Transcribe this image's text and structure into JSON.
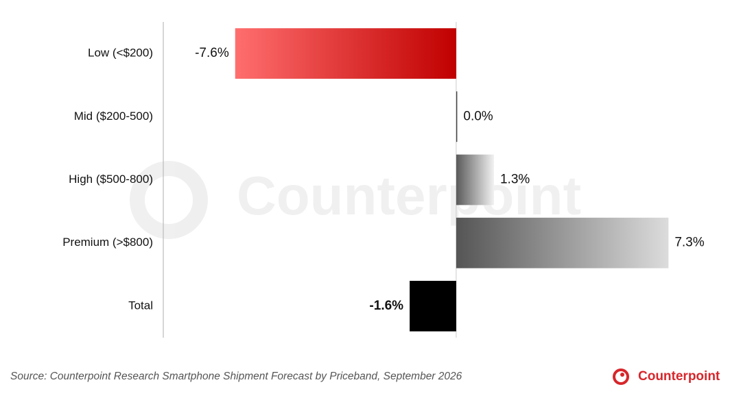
{
  "chart_data": {
    "type": "barh",
    "categories": [
      "Low (<$200)",
      "Mid ($200-500)",
      "High ($500-800)",
      "Premium (>$800)",
      "Total"
    ],
    "values": [
      -7.6,
      0.0,
      1.3,
      7.3,
      -1.6
    ],
    "value_labels": [
      "-7.6%",
      "0.0%",
      "1.3%",
      "7.3%",
      "-1.6%"
    ],
    "gradients": [
      [
        "#ff6e6e",
        "#c00000"
      ],
      [
        "#444444",
        "#444444"
      ],
      [
        "#5a5a5a",
        "#f2f2f2"
      ],
      [
        "#555555",
        "#dcdcdc"
      ],
      [
        "#000000",
        "#000000"
      ]
    ],
    "label_bold": [
      false,
      false,
      false,
      false,
      true
    ],
    "xlim": [
      -10,
      8
    ],
    "watermark": "Counterpoint",
    "source": "Source: Counterpoint Research Smartphone Shipment Forecast by Priceband, September 2026",
    "logo": "Counterpoint"
  }
}
